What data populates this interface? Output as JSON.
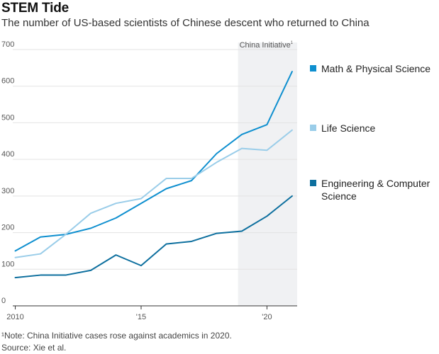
{
  "header": {
    "title": "STEM Tide",
    "subtitle": "The number of US-based scientists of Chinese descent who returned to China"
  },
  "chart_data": {
    "type": "line",
    "title": "STEM Tide",
    "subtitle": "The number of US-based scientists of Chinese descent who returned to China",
    "xlabel": "",
    "ylabel": "",
    "x": [
      2010,
      2011,
      2012,
      2013,
      2014,
      2015,
      2016,
      2017,
      2018,
      2019,
      2020,
      2021
    ],
    "xlim": [
      2009.9,
      2021.2
    ],
    "ylim": [
      0,
      700
    ],
    "x_ticks": [
      2010,
      2015,
      2020
    ],
    "x_tick_labels": [
      "2010",
      "'15",
      "'20"
    ],
    "y_ticks": [
      0,
      100,
      200,
      300,
      400,
      500,
      600,
      700
    ],
    "y_tick_labels": [
      "0",
      "100",
      "200",
      "300",
      "400",
      "500",
      "600",
      "700"
    ],
    "grid": true,
    "legend_position": "right",
    "shaded_region": {
      "x_start": 2018.85,
      "x_end": 2021.2,
      "label": "China Initiative",
      "color": "#f0f1f3"
    },
    "series": [
      {
        "name": "Math & Physical Science",
        "color": "#0e8fcf",
        "values": [
          150,
          188,
          195,
          212,
          240,
          280,
          320,
          342,
          416,
          468,
          495,
          640
        ]
      },
      {
        "name": "Life Science",
        "color": "#9acde9",
        "values": [
          132,
          142,
          195,
          253,
          280,
          293,
          348,
          348,
          392,
          430,
          425,
          480
        ]
      },
      {
        "name": "Engineering & Computer Science",
        "color": "#0d6f9e",
        "values": [
          77,
          84,
          84,
          97,
          139,
          110,
          169,
          176,
          198,
          204,
          245,
          300
        ]
      }
    ]
  },
  "footnotes": {
    "note": "¹Note: China Initiative cases rose against academics in 2020.",
    "source": "Source: Xie et al."
  }
}
